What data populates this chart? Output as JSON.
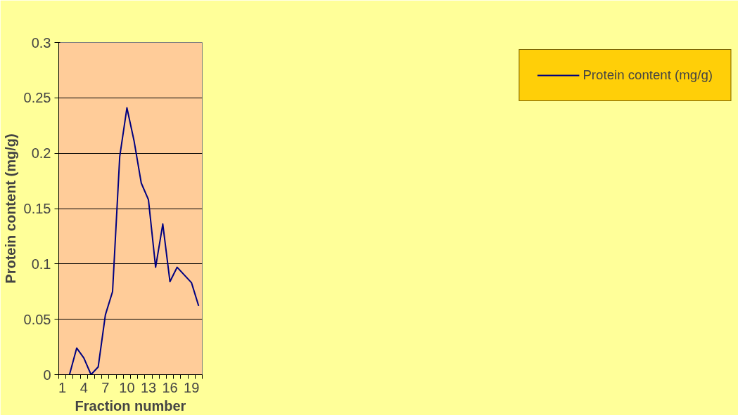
{
  "chart_data": {
    "type": "line",
    "xlabel": "Fraction number",
    "ylabel": "Protein content (mg/g)",
    "categories": [
      "1",
      null,
      null,
      "4",
      null,
      null,
      "7",
      null,
      null,
      "10",
      null,
      null,
      "13",
      null,
      null,
      "16",
      null,
      null,
      "19",
      null
    ],
    "series": [
      {
        "name": "Protein content (mg/g)",
        "color": "#000080",
        "values": [
          null,
          0,
          0.024,
          0.015,
          0,
          0.007,
          0.054,
          0.075,
          0.197,
          0.241,
          0.211,
          0.173,
          0.158,
          0.097,
          0.136,
          0.084,
          0.097,
          0.09,
          0.083,
          0.062
        ]
      }
    ],
    "ylim": [
      0,
      0.3
    ],
    "yticks": [
      0,
      0.05,
      0.1,
      0.15,
      0.2,
      0.25,
      0.3
    ],
    "grid": "y",
    "legend": "right",
    "marker": "none",
    "line_style": "solid"
  }
}
